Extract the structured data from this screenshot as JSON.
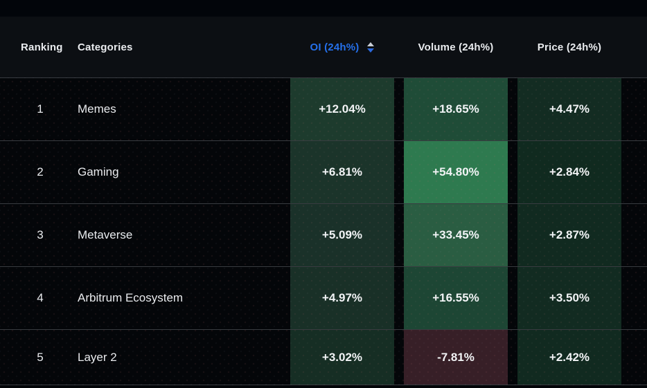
{
  "table": {
    "columns": {
      "ranking": "Ranking",
      "categories": "Categories",
      "oi": "OI (24h%)",
      "volume": "Volume (24h%)",
      "price": "Price (24h%)"
    },
    "sort": {
      "active_column": "OI (24h%)",
      "direction": "descending"
    },
    "rows": [
      {
        "rank": "1",
        "category": "Memes",
        "oi": {
          "value": "+12.04%",
          "bg": "#1d3b2d"
        },
        "volume": {
          "value": "+18.65%",
          "bg": "#1f4c37"
        },
        "price": {
          "value": "+4.47%",
          "bg": "#132c22"
        }
      },
      {
        "rank": "2",
        "category": "Gaming",
        "oi": {
          "value": "+6.81%",
          "bg": "#1b342a"
        },
        "volume": {
          "value": "+54.80%",
          "bg": "#2e7a4f"
        },
        "price": {
          "value": "+2.84%",
          "bg": "#102a1f"
        }
      },
      {
        "rank": "3",
        "category": "Metaverse",
        "oi": {
          "value": "+5.09%",
          "bg": "#1a3129"
        },
        "volume": {
          "value": "+33.45%",
          "bg": "#2a5d42"
        },
        "price": {
          "value": "+2.87%",
          "bg": "#112a20"
        }
      },
      {
        "rank": "4",
        "category": "Arbitrum Ecosystem",
        "oi": {
          "value": "+4.97%",
          "bg": "#193027"
        },
        "volume": {
          "value": "+16.55%",
          "bg": "#1d4634"
        },
        "price": {
          "value": "+3.50%",
          "bg": "#122b21"
        }
      },
      {
        "rank": "5",
        "category": "Layer 2",
        "oi": {
          "value": "+3.02%",
          "bg": "#162e24"
        },
        "volume": {
          "value": "-7.81%",
          "bg": "#371f27"
        },
        "price": {
          "value": "+2.42%",
          "bg": "#112a20"
        }
      }
    ]
  },
  "colors": {
    "accent_blue": "#2570eb",
    "header_bg": "#0c0f13",
    "row_bg": "#040609",
    "negative_bg": "#371f27",
    "value_text": "#f2f4f6"
  }
}
